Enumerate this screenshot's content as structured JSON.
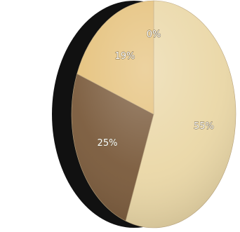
{
  "chart_data": {
    "type": "pie",
    "slices": [
      {
        "label": "0%",
        "value": 0,
        "color": "#f3e2bd"
      },
      {
        "label": "55%",
        "value": 55,
        "color": "#ead7a6"
      },
      {
        "label": "25%",
        "value": 25,
        "color": "#7a5a3b"
      },
      {
        "label": "19%",
        "value": 19,
        "color": "#e5c17b"
      }
    ],
    "legend": "none",
    "style": "3d-shaded"
  }
}
